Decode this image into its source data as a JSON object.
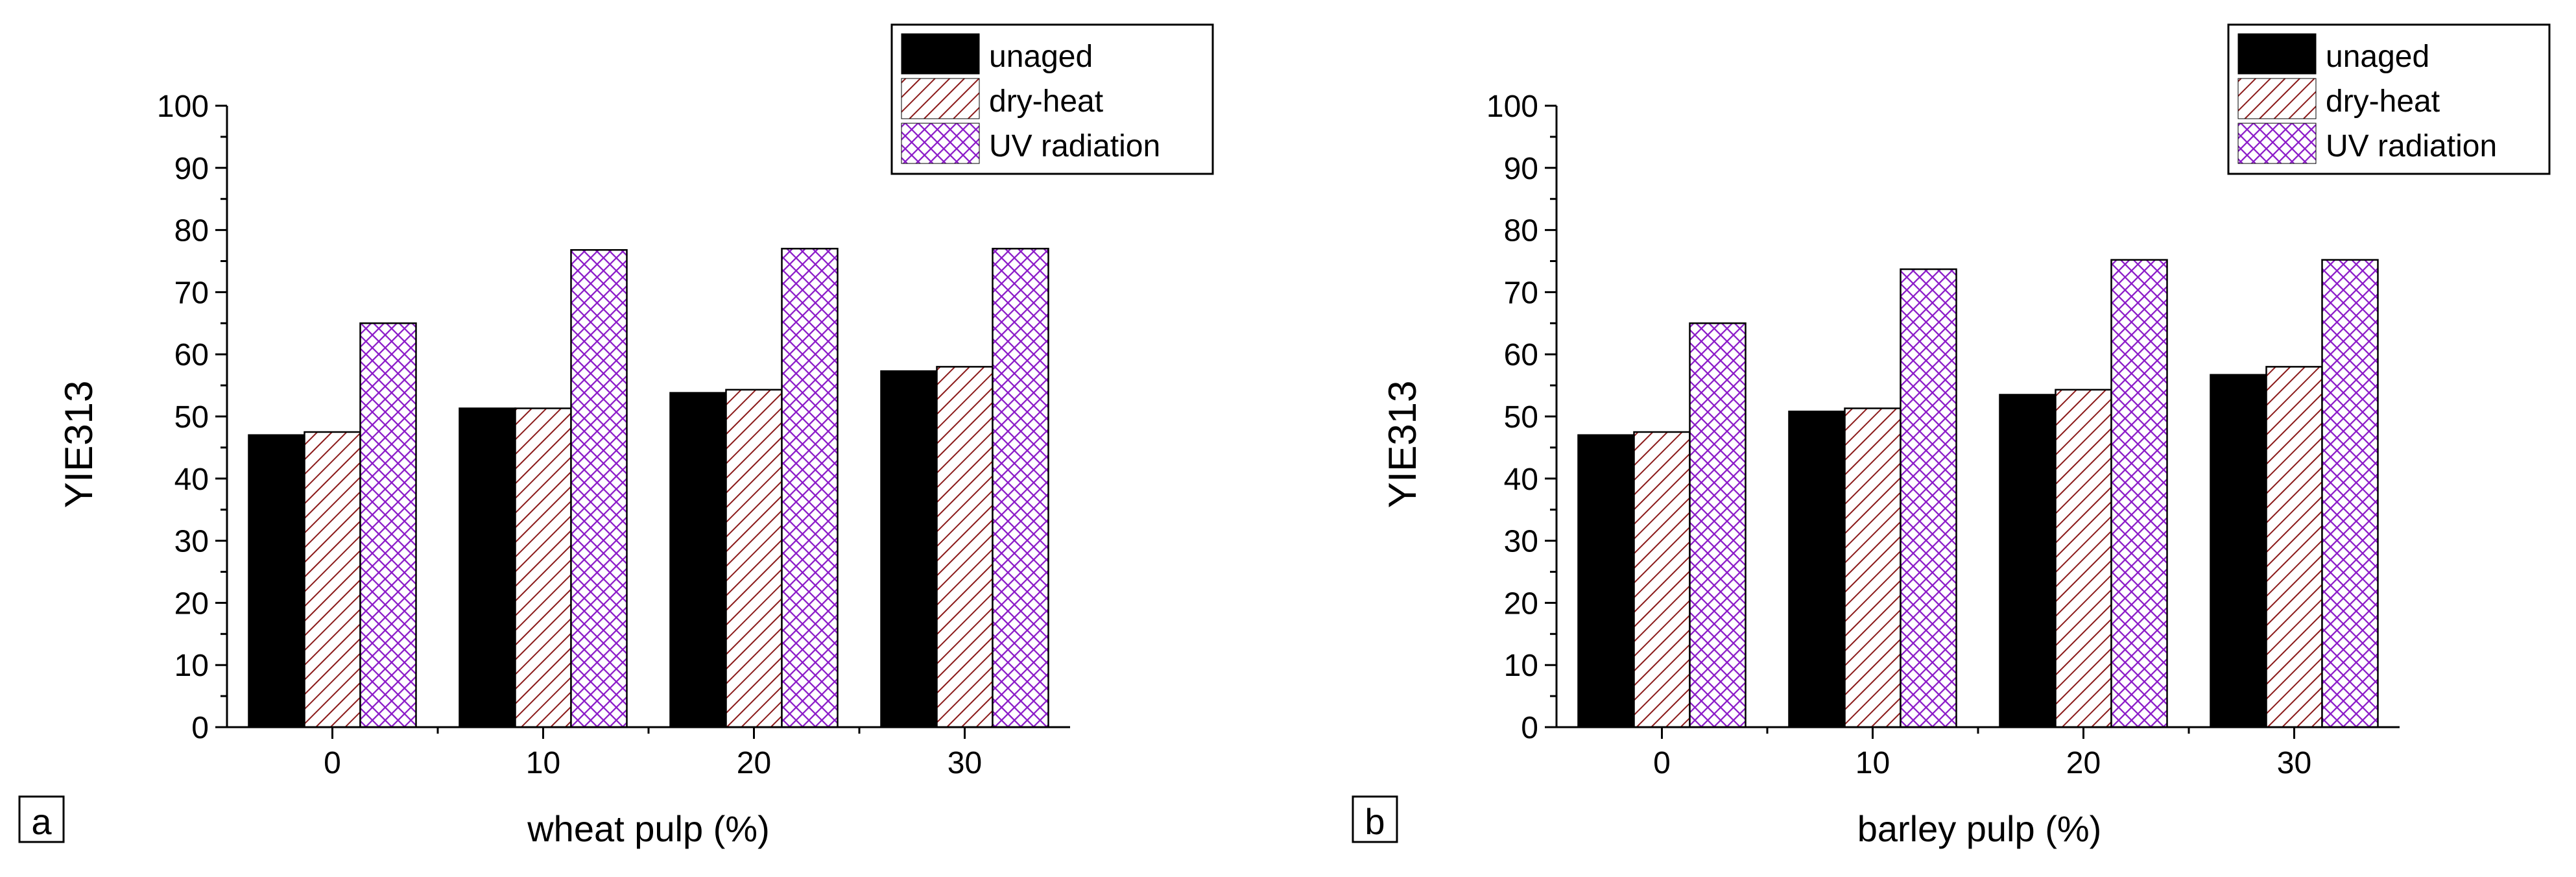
{
  "colors": {
    "unaged": "#000000",
    "dry_heat_fill": "#ffffff",
    "dry_heat_stroke": "#8b1a1a",
    "uv_fill": "#ffffff",
    "uv_stroke": "#8a18c8",
    "axis": "#000000"
  },
  "chart_data": [
    {
      "type": "bar",
      "panel_label": "a",
      "xlabel": "wheat pulp (%)",
      "ylabel": "YIE313",
      "categories": [
        "0",
        "10",
        "20",
        "30"
      ],
      "ylim": [
        0,
        100
      ],
      "yticks": [
        "0",
        "10",
        "20",
        "30",
        "40",
        "50",
        "60",
        "70",
        "80",
        "90",
        "100"
      ],
      "legend_position": "top-right",
      "series": [
        {
          "name": "unaged",
          "values": [
            47,
            51.3,
            53.8,
            57.3
          ]
        },
        {
          "name": "dry-heat",
          "values": [
            47.5,
            51.3,
            54.3,
            58
          ]
        },
        {
          "name": "UV radiation",
          "values": [
            65,
            76.8,
            77,
            77
          ]
        }
      ]
    },
    {
      "type": "bar",
      "panel_label": "b",
      "xlabel": "barley pulp (%)",
      "ylabel": "YIE313",
      "categories": [
        "0",
        "10",
        "20",
        "30"
      ],
      "ylim": [
        0,
        100
      ],
      "yticks": [
        "0",
        "10",
        "20",
        "30",
        "40",
        "50",
        "60",
        "70",
        "80",
        "90",
        "100"
      ],
      "legend_position": "top-right",
      "series": [
        {
          "name": "unaged",
          "values": [
            47,
            50.8,
            53.5,
            56.7
          ]
        },
        {
          "name": "dry-heat",
          "values": [
            47.5,
            51.3,
            54.3,
            58
          ]
        },
        {
          "name": "UV radiation",
          "values": [
            65,
            73.7,
            75.2,
            75.2
          ]
        }
      ]
    }
  ]
}
